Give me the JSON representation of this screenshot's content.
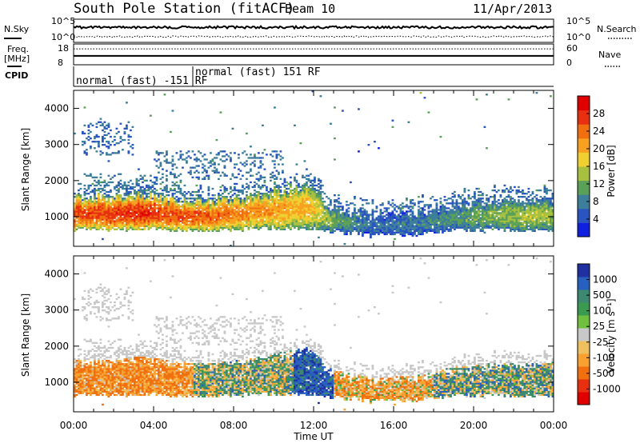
{
  "header": {
    "title": "South Pole Station (fitACF)",
    "beam": "Beam 10",
    "date": "11/Apr/2013"
  },
  "strips": {
    "noise": {
      "left_label": "N.Sky",
      "right_label": "N.Search",
      "ticks_left": [
        "10^5",
        "10^0"
      ],
      "ticks_right": [
        "10^5",
        "10^0"
      ],
      "sky_level": 0.65,
      "search_level": 0.25
    },
    "freq": {
      "left_label": [
        "Freq.",
        "[MHz]"
      ],
      "right_label": "Nave",
      "ticks_left": [
        "18",
        "8"
      ],
      "ticks_right": [
        "60",
        "0"
      ],
      "freq_mhz": 12.3,
      "nave": 46
    },
    "cpid": {
      "label": "CPID",
      "segments": [
        "normal (fast) -151 RF",
        "normal (fast) 151 RF"
      ],
      "boundary_hour": 6.0
    }
  },
  "time_axis": {
    "ticks": [
      "00:00",
      "04:00",
      "08:00",
      "12:00",
      "16:00",
      "20:00",
      "00:00"
    ]
  },
  "chart_data": [
    {
      "type": "heatmap",
      "parameter": "power",
      "xlabel": "Time UT",
      "ylabel": "Slant Range [km]",
      "x_range_hours": [
        0,
        24
      ],
      "ylim": [
        180,
        4500
      ],
      "yticks": [
        1000,
        2000,
        3000,
        4000
      ],
      "colorbar_label": "Power [dB]",
      "colorbar_ticks": [
        4,
        8,
        12,
        16,
        20,
        24,
        28
      ],
      "colorbar_range": [
        0,
        32
      ],
      "colorbar_colors": [
        "#1020e0",
        "#2a55c0",
        "#3d7f9a",
        "#5aa058",
        "#a8c040",
        "#f0d030",
        "#f8a020",
        "#f07010",
        "#e83010",
        "#e00000"
      ],
      "main_echo_band": [
        {
          "hour": 0,
          "low": 620,
          "high": 1500,
          "power": 26
        },
        {
          "hour": 2,
          "low": 620,
          "high": 1500,
          "power": 27
        },
        {
          "hour": 3.4,
          "low": 650,
          "high": 1600,
          "power": 28
        },
        {
          "hour": 5,
          "low": 600,
          "high": 1450,
          "power": 26
        },
        {
          "hour": 7,
          "low": 580,
          "high": 1400,
          "power": 25
        },
        {
          "hour": 9,
          "low": 650,
          "high": 1550,
          "power": 22
        },
        {
          "hour": 11.7,
          "low": 650,
          "high": 1850,
          "power": 20
        },
        {
          "hour": 13,
          "low": 550,
          "high": 1200,
          "power": 12
        },
        {
          "hour": 15,
          "low": 480,
          "high": 1000,
          "power": 7
        },
        {
          "hour": 17,
          "low": 480,
          "high": 1050,
          "power": 8
        },
        {
          "hour": 19,
          "low": 600,
          "high": 1300,
          "power": 10
        },
        {
          "hour": 21,
          "low": 620,
          "high": 1400,
          "power": 13
        },
        {
          "hour": 23,
          "low": 600,
          "high": 1400,
          "power": 15
        },
        {
          "hour": 24,
          "low": 600,
          "high": 1450,
          "power": 14
        }
      ],
      "weak_echo_patches": [
        {
          "hour_from": 0.5,
          "hour_to": 5.5,
          "range_from": 1600,
          "range_to": 2200,
          "power": 6
        },
        {
          "hour_from": 0.4,
          "hour_to": 3.0,
          "range_from": 2700,
          "range_to": 3600,
          "power": 4
        },
        {
          "hour_from": 4.0,
          "hour_to": 10.5,
          "range_from": 2000,
          "range_to": 2800,
          "power": 5
        }
      ]
    },
    {
      "type": "heatmap",
      "parameter": "velocity",
      "xlabel": "Time UT",
      "ylabel": "Slant Range [km]",
      "x_range_hours": [
        0,
        24
      ],
      "ylim": [
        180,
        4500
      ],
      "yticks": [
        1000,
        2000,
        3000,
        4000
      ],
      "colorbar_label": "Velocity [m s⁻¹]",
      "colorbar_ticks": [
        "1000",
        "500",
        "100",
        "25",
        "-25",
        "-100",
        "-500",
        "-1000"
      ],
      "colorbar_colors": [
        "#2030a0",
        "#2860c0",
        "#3d8870",
        "#3a9a50",
        "#70c040",
        "#c8c8c8",
        "#f0c060",
        "#f8a030",
        "#f07010",
        "#e83010",
        "#e00000"
      ],
      "velocity_segments": [
        {
          "hour_from": 0,
          "hour_to": 6,
          "dominant_ms": -250
        },
        {
          "hour_from": 6,
          "hour_to": 11,
          "dominant_ms": 60
        },
        {
          "hour_from": 11,
          "hour_to": 13,
          "dominant_ms": 400
        },
        {
          "hour_from": 13,
          "hour_to": 18,
          "dominant_ms": -150
        },
        {
          "hour_from": 18,
          "hour_to": 24,
          "dominant_ms": 80
        }
      ]
    }
  ]
}
